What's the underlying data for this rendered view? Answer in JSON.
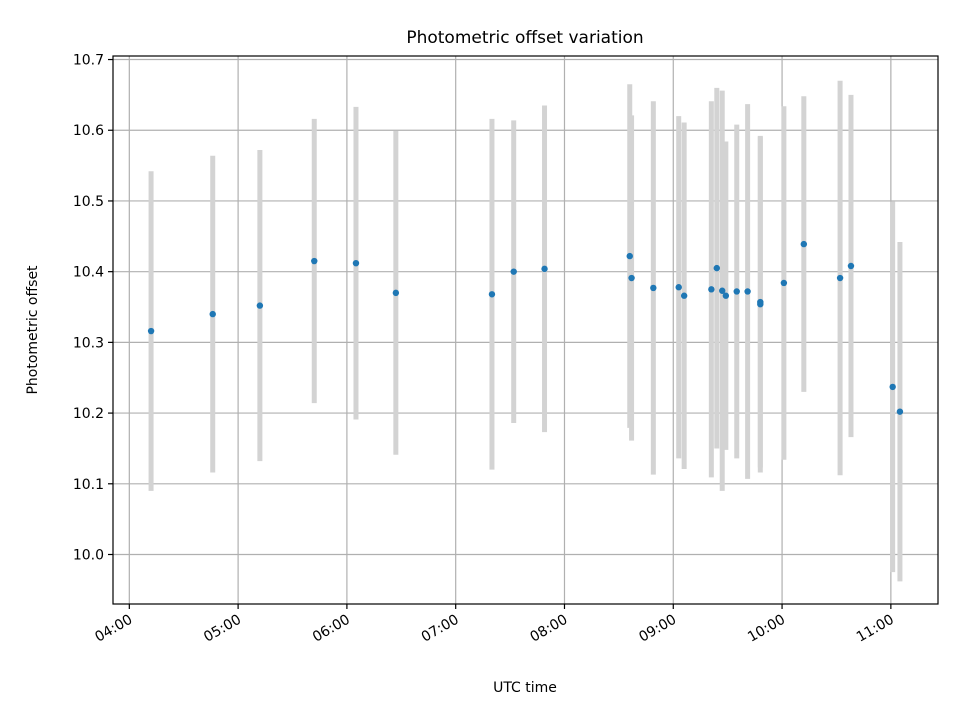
{
  "chart_data": {
    "type": "scatter",
    "title": "Photometric offset variation",
    "xlabel": "UTC time",
    "ylabel": "Photometric offset",
    "x_tick_labels": [
      "04:00",
      "05:00",
      "06:00",
      "07:00",
      "08:00",
      "09:00",
      "10:00",
      "11:00"
    ],
    "y_tick_labels": [
      "10.0",
      "10.1",
      "10.2",
      "10.3",
      "10.4",
      "10.5",
      "10.6",
      "10.7"
    ],
    "xlim": [
      "03:51",
      "11:26"
    ],
    "ylim": [
      9.93,
      10.705
    ],
    "grid": true,
    "points": [
      {
        "x": "04:12",
        "y": 10.316,
        "err": 0.226
      },
      {
        "x": "04:46",
        "y": 10.34,
        "err": 0.224
      },
      {
        "x": "05:12",
        "y": 10.352,
        "err": 0.22
      },
      {
        "x": "05:42",
        "y": 10.415,
        "err": 0.201
      },
      {
        "x": "06:05",
        "y": 10.412,
        "err": 0.221
      },
      {
        "x": "06:27",
        "y": 10.37,
        "err": 0.229
      },
      {
        "x": "07:20",
        "y": 10.368,
        "err": 0.248
      },
      {
        "x": "07:32",
        "y": 10.4,
        "err": 0.214
      },
      {
        "x": "07:49",
        "y": 10.404,
        "err": 0.231
      },
      {
        "x": "08:36",
        "y": 10.422,
        "err": 0.243
      },
      {
        "x": "08:37",
        "y": 10.391,
        "err": 0.23
      },
      {
        "x": "08:49",
        "y": 10.377,
        "err": 0.264
      },
      {
        "x": "09:03",
        "y": 10.378,
        "err": 0.242
      },
      {
        "x": "09:06",
        "y": 10.366,
        "err": 0.245
      },
      {
        "x": "09:21",
        "y": 10.375,
        "err": 0.266
      },
      {
        "x": "09:24",
        "y": 10.405,
        "err": 0.255
      },
      {
        "x": "09:27",
        "y": 10.373,
        "err": 0.283
      },
      {
        "x": "09:29",
        "y": 10.366,
        "err": 0.218
      },
      {
        "x": "09:35",
        "y": 10.372,
        "err": 0.236
      },
      {
        "x": "09:41",
        "y": 10.372,
        "err": 0.265
      },
      {
        "x": "09:48",
        "y": 10.357,
        "err": 0.234
      },
      {
        "x": "09:48",
        "y": 10.354,
        "err": 0.238
      },
      {
        "x": "10:01",
        "y": 10.384,
        "err": 0.25
      },
      {
        "x": "10:12",
        "y": 10.439,
        "err": 0.209
      },
      {
        "x": "10:32",
        "y": 10.391,
        "err": 0.279
      },
      {
        "x": "10:38",
        "y": 10.408,
        "err": 0.242
      },
      {
        "x": "11:01",
        "y": 10.237,
        "err": 0.262
      },
      {
        "x": "11:05",
        "y": 10.202,
        "err": 0.24
      }
    ]
  },
  "colors": {
    "marker": "#1f77b4",
    "errorbar": "#d3d3d3",
    "grid": "#b0b0b0",
    "axes": "#000000"
  }
}
